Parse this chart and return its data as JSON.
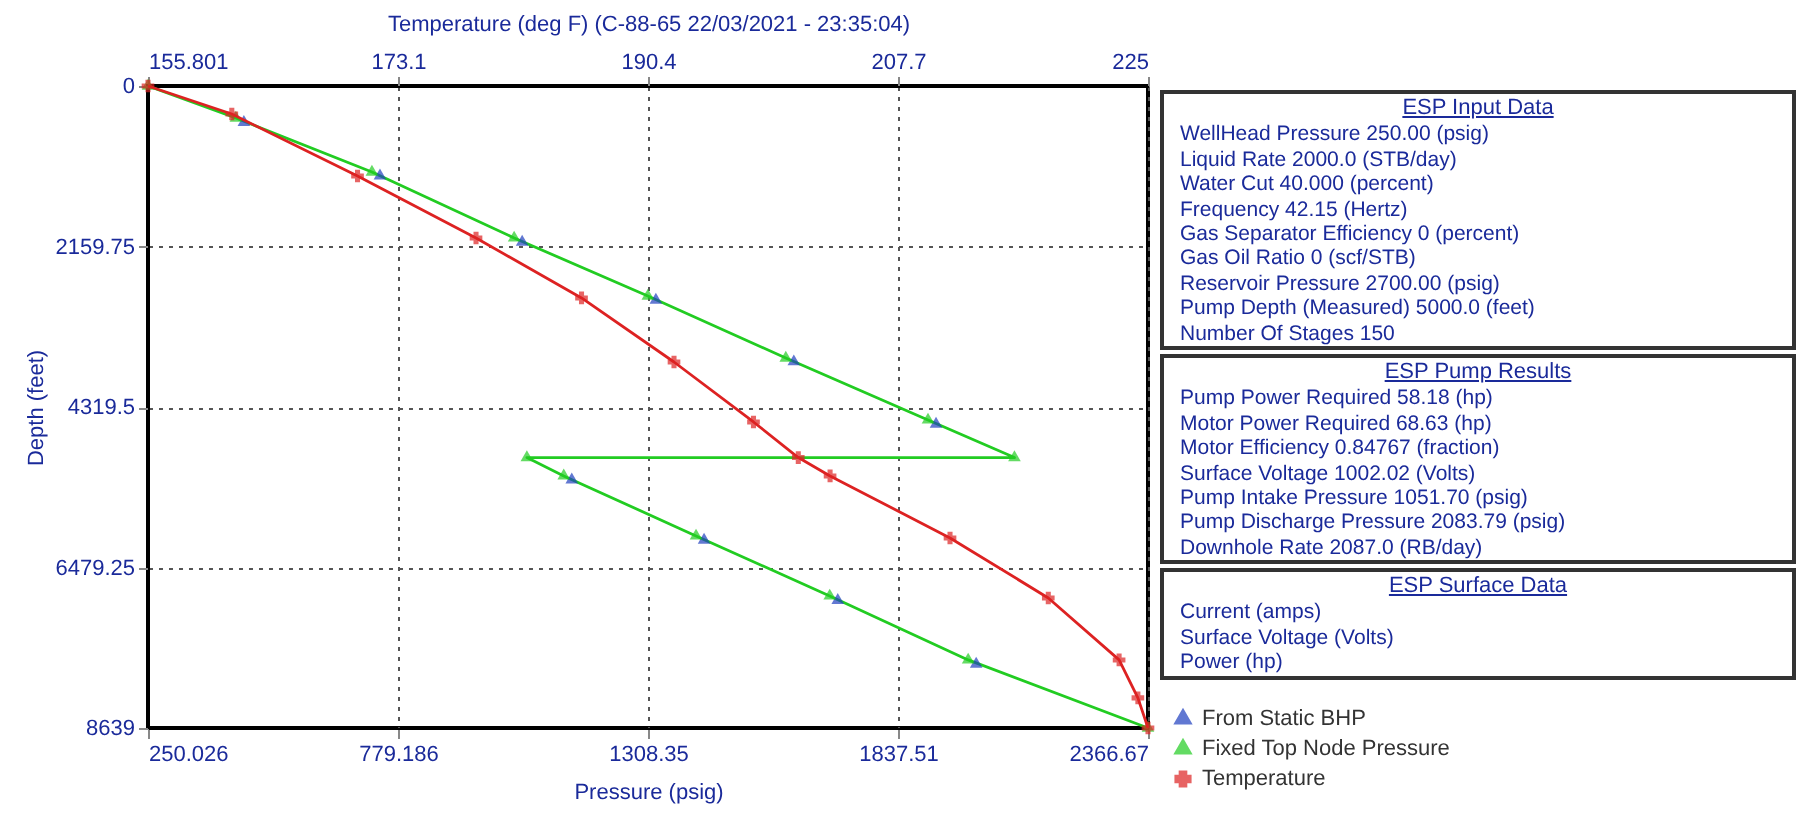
{
  "chart_data": [
    {
      "type": "line",
      "x2label": "Temperature  (deg F) (C-88-65 22/03/2021 - 23:35:04)",
      "xlabel": "Pressure  (psig)",
      "ylabel": "Depth  (feet)",
      "xlim": [
        250.026,
        2366.67
      ],
      "xticks": [
        250.026,
        779.186,
        1308.35,
        1837.51,
        2366.67
      ],
      "x2lim": [
        155.801,
        225
      ],
      "x2ticks": [
        155.801,
        173.1,
        190.4,
        207.7,
        225
      ],
      "ylim": [
        8639,
        0
      ],
      "yticks": [
        0,
        2159.75,
        4319.5,
        6479.25,
        8639
      ],
      "grid": true,
      "legend": "bottom right",
      "line_style": "solid",
      "series": [
        {
          "name": "From Static BHP",
          "type": "scatter",
          "color": "#1f3fbf",
          "marker": "triangle",
          "x": [
            453,
            741,
            1042,
            1325,
            1617,
            1918,
            1147,
            1427,
            1710,
            2003
          ],
          "values": [
            490,
            1210,
            2100,
            2880,
            3710,
            4550,
            5300,
            6110,
            6920,
            7780
          ]
        },
        {
          "name": "Fixed Top Node Pressure",
          "color": "#22cc22",
          "marker": "triangle",
          "x": [
            250.026,
            436,
            724,
            1025,
            1308,
            1600,
            1901,
            2084,
            1052,
            1130,
            1410,
            1693,
            1986,
            2366.67
          ],
          "values": [
            0,
            431,
            1157,
            2045,
            2826,
            3660,
            4494,
            5000,
            5000,
            5247,
            6055,
            6862,
            7723,
            8639
          ]
        },
        {
          "name": "Temperature",
          "color": "#dd2222",
          "marker": "cross",
          "axis": "x2",
          "x": [
            155.801,
            161.6,
            170.3,
            178.5,
            185.8,
            192.2,
            197.7,
            200.8,
            203.0,
            211.3,
            218.1,
            223.0,
            224.3,
            225
          ],
          "values": [
            0,
            377,
            1211,
            2045,
            2852,
            3714,
            4521,
            5000,
            5247,
            6082,
            6889,
            7723,
            8234,
            8639
          ]
        }
      ]
    },
    {
      "type": "other",
      "title": "ESP Input Data",
      "annotations": [
        "WellHead Pressure  250.00 (psig)",
        "Liquid Rate  2000.0 (STB/day)",
        "Water Cut  40.000 (percent)",
        "Frequency  42.15 (Hertz)",
        "Gas Separator Efficiency  0 (percent)",
        "Gas Oil Ratio  0 (scf/STB)",
        "Reservoir Pressure  2700.00 (psig)",
        "Pump Depth (Measured)  5000.0 (feet)",
        "Number Of Stages  150"
      ]
    },
    {
      "type": "other",
      "title": "ESP Pump Results",
      "annotations": [
        "Pump Power Required  58.18 (hp)",
        "Motor Power Required  68.63 (hp)",
        "Motor Efficiency  0.84767 (fraction)",
        "Surface Voltage  1002.02 (Volts)",
        "Pump Intake Pressure  1051.70 (psig)",
        "Pump Discharge Pressure  2083.79 (psig)",
        "Downhole Rate  2087.0 (RB/day)"
      ]
    },
    {
      "type": "other",
      "title": "ESP Surface Data",
      "annotations": [
        "Current  (amps)",
        "Surface Voltage  (Volts)",
        "Power  (hp)"
      ]
    }
  ]
}
